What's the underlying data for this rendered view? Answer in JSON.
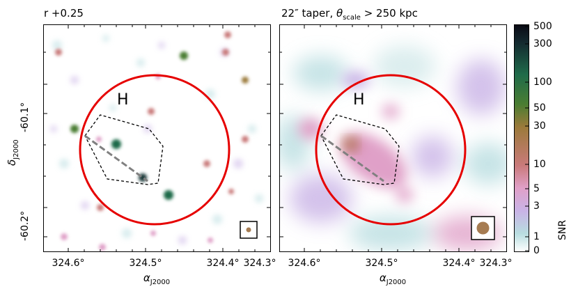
{
  "left_panel": {
    "title": "r +0.25",
    "region_label": "H"
  },
  "right_panel": {
    "title_prefix": "22″ taper, ",
    "title_theta": "θ",
    "title_sub": "scale",
    "title_suffix": " > 250 kpc",
    "region_label": "H"
  },
  "x_axis": {
    "label": "α",
    "label_sub": "J2000",
    "ticks": [
      "324.6°",
      "324.5°",
      "324.4°",
      "324.3°"
    ]
  },
  "y_axis": {
    "label": "δ",
    "label_sub": "J2000",
    "ticks": [
      "-60.1°",
      "-60.2°"
    ]
  },
  "colorbar": {
    "label": "SNR",
    "ticks": [
      "500",
      "300",
      "100",
      "50",
      "30",
      "10",
      "5",
      "3",
      "1",
      "0"
    ],
    "colors": [
      "#0a0a14",
      "#1b3a3a",
      "#1f6b4a",
      "#4a7d32",
      "#9b7a3a",
      "#c97a7a",
      "#e0a0c8",
      "#c9b3e6",
      "#b8dde0",
      "#ffffff"
    ]
  }
}
